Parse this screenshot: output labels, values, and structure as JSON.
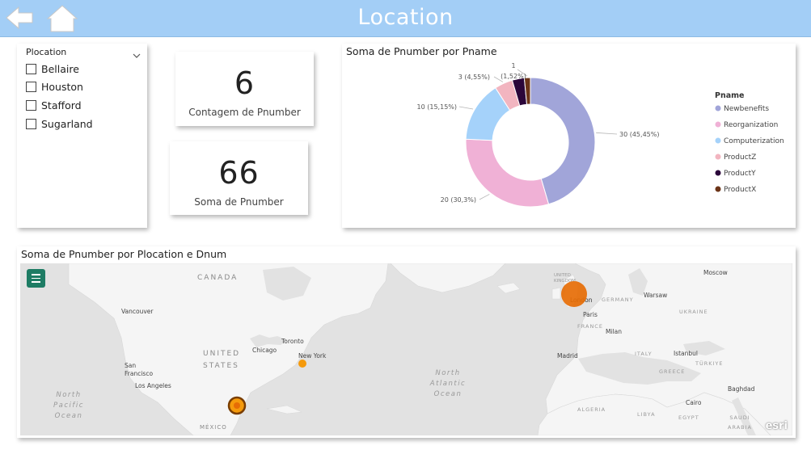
{
  "header": {
    "title": "Location",
    "back_icon": "back-arrow-icon",
    "home_icon": "home-icon",
    "background": "#a3cef6"
  },
  "slicer": {
    "title": "Plocation",
    "items": [
      {
        "label": "Bellaire",
        "checked": false
      },
      {
        "label": "Houston",
        "checked": false
      },
      {
        "label": "Stafford",
        "checked": false
      },
      {
        "label": "Sugarland",
        "checked": false
      }
    ]
  },
  "kpis": [
    {
      "value": "6",
      "label": "Contagem de Pnumber"
    },
    {
      "value": "66",
      "label": "Soma de Pnumber"
    }
  ],
  "donut": {
    "title": "Soma de Pnumber por Pname",
    "legend_title": "Pname",
    "chart_data": {
      "type": "donut",
      "title": "Soma de Pnumber por Pname",
      "legend_title": "Pname",
      "legend_position": "right",
      "slices": [
        {
          "label": "Newbenefits",
          "value": 30,
          "display": "30 (45,45%)",
          "color": "#a1a5d9"
        },
        {
          "label": "Reorganization",
          "value": 20,
          "display": "20 (30,3%)",
          "color": "#f0b1d6"
        },
        {
          "label": "Computerization",
          "value": 10,
          "display": "10 (15,15%)",
          "color": "#a5d2fa"
        },
        {
          "label": "ProductZ",
          "value": 3,
          "display": "3 (4,55%)",
          "color": "#f2b5c0"
        },
        {
          "label": "ProductY",
          "value": 2,
          "display": "",
          "color": "#2b063a"
        },
        {
          "label": "ProductX",
          "value": 1,
          "display": "1 (1,52%)",
          "color": "#6c3418"
        }
      ]
    }
  },
  "map": {
    "title": "Soma de Pnumber por Plocation e Dnum",
    "menu_icon": "hamburger-menu-icon",
    "attribution": "esri",
    "labels": {
      "canada": "CANADA",
      "united_states": "UNITED STATES",
      "mexico": "MÉXICO",
      "north_pacific": "North Pacific Ocean",
      "north_atlantic": "North Atlantic Ocean",
      "vancouver": "Vancouver",
      "san_francisco": "San Francisco",
      "los_angeles": "Los Angeles",
      "chicago": "Chicago",
      "toronto": "Toronto",
      "new_york": "New York",
      "united_kingdom": "UNITED KINGDOM",
      "london": "London",
      "paris": "Paris",
      "germany": "GERMANY",
      "france": "FRANCE",
      "warsaw": "Warsaw",
      "moscow": "Moscow",
      "ukraine": "UKRAINE",
      "milan": "Milan",
      "madrid": "Madrid",
      "italy": "ITALY",
      "greece": "GREECE",
      "istanbul": "Istanbul",
      "turkiye": "TÜRKIYE",
      "baghdad": "Baghdad",
      "cairo": "Cairo",
      "algeria": "ALGERIA",
      "libya": "LIBYA",
      "egypt": "EGYPT",
      "saudi_arabia": "SAUDI ARABIA"
    },
    "bubble_colors": {
      "orange": "#f59a0c",
      "dark_orange": "#e66c05",
      "outline": "#7a3d00"
    }
  }
}
